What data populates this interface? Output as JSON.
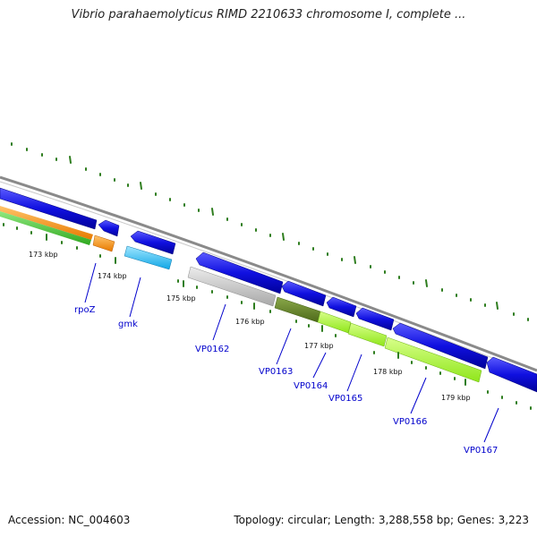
{
  "title": "Vibrio parahaemolyticus RIMD 2210633 chromosome I, complete ...",
  "footer": {
    "accession": "Accession: NC_004603",
    "summary": "Topology: circular; Length: 3,288,558 bp; Genes: 3,223"
  },
  "scale": {
    "labels": [
      "173 kbp",
      "174 kbp",
      "175 kbp",
      "176 kbp",
      "177 kbp",
      "178 kbp",
      "179 kbp"
    ]
  },
  "genes": [
    {
      "name": "rpoZ"
    },
    {
      "name": "gmk"
    },
    {
      "name": "VP0162"
    },
    {
      "name": "VP0163"
    },
    {
      "name": "VP0164"
    },
    {
      "name": "VP0165"
    },
    {
      "name": "VP0166"
    },
    {
      "name": "VP0167"
    }
  ],
  "colors": {
    "backbone": "#8a8a8a",
    "cds": "#1a1adb",
    "tick": "#2e7d1e",
    "label": "#0000cc"
  }
}
